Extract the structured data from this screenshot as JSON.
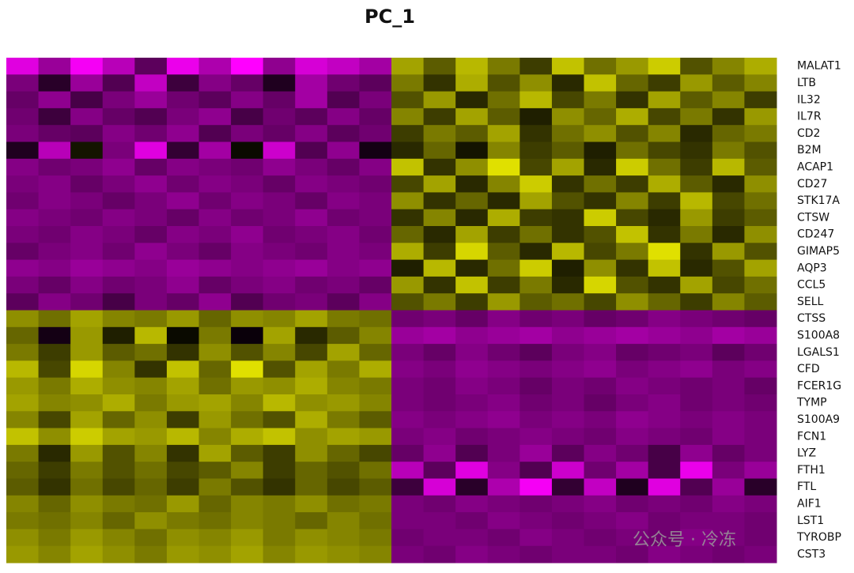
{
  "chart_data": {
    "type": "heatmap",
    "title": "PC_1",
    "rows": [
      "MALAT1",
      "LTB",
      "IL32",
      "IL7R",
      "CD2",
      "B2M",
      "ACAP1",
      "CD27",
      "STK17A",
      "CTSW",
      "CD247",
      "GIMAP5",
      "AQP3",
      "CCL5",
      "SELL",
      "CTSS",
      "S100A8",
      "LGALS1",
      "CFD",
      "FCER1G",
      "TYMP",
      "S100A9",
      "FCN1",
      "LYZ",
      "FTH1",
      "FTL",
      "AIF1",
      "LST1",
      "TYROBP",
      "CST3"
    ],
    "color_scale": {
      "colors": [
        "#ff00ff",
        "#000000",
        "#ffff00"
      ],
      "range": [
        -2.5,
        2.5
      ]
    },
    "values": [
      [
        -2.2,
        -1.5,
        -2.4,
        -1.8,
        -0.9,
        -2.3,
        -1.7,
        -2.5,
        -1.4,
        -2.1,
        -1.9,
        -1.6,
        1.6,
        0.9,
        1.8,
        1.2,
        0.6,
        1.9,
        1.1,
        1.5,
        2.0,
        0.8,
        1.3,
        1.7
      ],
      [
        -1.2,
        -0.4,
        -1.5,
        -0.8,
        -1.9,
        -0.6,
        -1.3,
        -1.0,
        -0.3,
        -1.6,
        -1.1,
        -0.9,
        1.2,
        0.5,
        1.7,
        0.8,
        1.4,
        0.4,
        1.9,
        1.0,
        0.6,
        1.5,
        0.9,
        1.3
      ],
      [
        -1.0,
        -1.4,
        -0.7,
        -1.2,
        -1.5,
        -1.1,
        -0.9,
        -1.3,
        -1.0,
        -1.6,
        -0.8,
        -1.2,
        0.8,
        1.5,
        0.4,
        1.1,
        1.8,
        0.7,
        1.2,
        0.5,
        1.6,
        0.9,
        1.3,
        0.6
      ],
      [
        -1.1,
        -0.6,
        -1.3,
        -1.0,
        -0.8,
        -1.2,
        -1.4,
        -0.7,
        -1.1,
        -0.9,
        -1.3,
        -1.0,
        1.3,
        0.6,
        1.6,
        0.9,
        0.3,
        1.4,
        1.0,
        1.7,
        0.7,
        1.2,
        0.5,
        1.5
      ],
      [
        -1.2,
        -1.0,
        -0.9,
        -1.3,
        -1.1,
        -1.4,
        -0.8,
        -1.2,
        -1.0,
        -1.3,
        -0.9,
        -1.1,
        0.6,
        1.2,
        0.9,
        1.6,
        0.5,
        1.1,
        1.4,
        0.8,
        1.3,
        0.4,
        1.0,
        1.2
      ],
      [
        -0.3,
        -1.8,
        0.2,
        -1.2,
        -2.2,
        -0.5,
        -1.6,
        0.1,
        -2.0,
        -0.8,
        -1.4,
        -0.2,
        0.4,
        1.0,
        0.2,
        1.3,
        0.6,
        0.9,
        0.3,
        1.1,
        0.7,
        0.5,
        1.2,
        0.8
      ],
      [
        -1.3,
        -1.1,
        -1.2,
        -1.4,
        -1.0,
        -1.3,
        -1.2,
        -1.1,
        -1.4,
        -1.2,
        -1.0,
        -1.3,
        1.9,
        0.5,
        1.4,
        2.2,
        0.7,
        1.6,
        0.4,
        2.0,
        1.1,
        0.6,
        1.8,
        0.9
      ],
      [
        -1.2,
        -1.3,
        -1.0,
        -1.2,
        -1.4,
        -1.1,
        -1.3,
        -1.2,
        -1.0,
        -1.3,
        -1.2,
        -1.1,
        0.7,
        1.6,
        0.4,
        1.3,
        2.0,
        0.5,
        1.1,
        0.6,
        1.7,
        0.9,
        0.4,
        1.4
      ],
      [
        -1.1,
        -1.3,
        -1.2,
        -1.0,
        -1.2,
        -1.4,
        -1.1,
        -1.3,
        -1.2,
        -1.0,
        -1.3,
        -1.2,
        1.4,
        0.5,
        1.0,
        0.4,
        1.6,
        0.8,
        0.5,
        1.3,
        0.6,
        1.8,
        0.7,
        1.1
      ],
      [
        -1.3,
        -1.2,
        -1.1,
        -1.3,
        -1.2,
        -1.0,
        -1.3,
        -1.1,
        -1.2,
        -1.4,
        -1.1,
        -1.2,
        0.5,
        1.3,
        0.4,
        1.7,
        0.6,
        0.5,
        2.0,
        0.7,
        0.4,
        1.5,
        0.6,
        0.9
      ],
      [
        -1.2,
        -1.1,
        -1.3,
        -1.2,
        -1.0,
        -1.3,
        -1.2,
        -1.4,
        -1.1,
        -1.2,
        -1.3,
        -1.1,
        1.0,
        0.4,
        1.6,
        0.6,
        1.1,
        0.5,
        0.8,
        1.9,
        0.5,
        1.2,
        0.4,
        1.4
      ],
      [
        -1.0,
        -1.2,
        -1.3,
        -1.1,
        -1.4,
        -1.2,
        -1.0,
        -1.3,
        -1.2,
        -1.1,
        -1.3,
        -1.2,
        1.7,
        0.6,
        2.1,
        0.9,
        0.4,
        1.8,
        0.7,
        1.2,
        2.2,
        0.5,
        1.5,
        0.8
      ],
      [
        -1.4,
        -1.3,
        -1.5,
        -1.4,
        -1.3,
        -1.5,
        -1.4,
        -1.3,
        -1.4,
        -1.5,
        -1.3,
        -1.4,
        0.3,
        1.8,
        0.4,
        1.1,
        2.0,
        0.3,
        1.4,
        0.5,
        1.9,
        0.4,
        0.8,
        1.6
      ],
      [
        -1.2,
        -1.0,
        -1.3,
        -1.1,
        -1.2,
        -1.4,
        -1.0,
        -1.2,
        -1.3,
        -1.1,
        -1.2,
        -1.0,
        1.5,
        0.5,
        1.9,
        0.6,
        1.2,
        0.4,
        2.1,
        0.8,
        0.5,
        1.6,
        0.7,
        1.1
      ],
      [
        -0.9,
        -1.3,
        -1.1,
        -0.7,
        -1.2,
        -1.0,
        -1.4,
        -0.8,
        -1.1,
        -1.2,
        -0.9,
        -1.3,
        0.8,
        1.2,
        0.6,
        1.5,
        0.9,
        1.1,
        0.7,
        1.4,
        1.0,
        0.6,
        1.3,
        0.9
      ],
      [
        1.4,
        1.1,
        1.6,
        1.3,
        1.2,
        1.5,
        1.0,
        1.4,
        1.3,
        1.6,
        1.2,
        1.1,
        -1.1,
        -1.2,
        -1.0,
        -1.3,
        -1.1,
        -1.2,
        -1.0,
        -1.1,
        -1.3,
        -1.2,
        -1.1,
        -1.0
      ],
      [
        1.0,
        -0.2,
        1.5,
        0.3,
        1.8,
        0.1,
        1.2,
        -0.1,
        1.6,
        0.4,
        0.9,
        1.3,
        -1.5,
        -1.6,
        -1.4,
        -1.5,
        -1.6,
        -1.4,
        -1.5,
        -1.6,
        -1.5,
        -1.4,
        -1.6,
        -1.5
      ],
      [
        1.2,
        0.6,
        1.5,
        0.9,
        1.1,
        0.5,
        1.4,
        0.8,
        1.3,
        0.7,
        1.6,
        1.0,
        -1.2,
        -1.0,
        -1.3,
        -1.1,
        -0.9,
        -1.2,
        -1.3,
        -1.0,
        -1.1,
        -1.2,
        -0.9,
        -1.1
      ],
      [
        1.8,
        0.7,
        2.1,
        1.3,
        0.5,
        1.9,
        1.0,
        2.2,
        0.8,
        1.6,
        1.2,
        1.7,
        -1.3,
        -1.2,
        -1.4,
        -1.3,
        -1.2,
        -1.3,
        -1.4,
        -1.2,
        -1.3,
        -1.4,
        -1.2,
        -1.3
      ],
      [
        1.5,
        1.2,
        1.7,
        1.4,
        1.3,
        1.6,
        1.1,
        1.5,
        1.4,
        1.7,
        1.3,
        1.2,
        -1.2,
        -1.1,
        -1.3,
        -1.2,
        -1.0,
        -1.2,
        -1.1,
        -1.3,
        -1.2,
        -1.1,
        -1.2,
        -1.0
      ],
      [
        1.6,
        1.3,
        1.4,
        1.7,
        1.2,
        1.5,
        1.6,
        1.3,
        1.8,
        1.4,
        1.5,
        1.3,
        -1.2,
        -1.1,
        -1.2,
        -1.3,
        -1.1,
        -1.2,
        -1.0,
        -1.2,
        -1.3,
        -1.1,
        -1.2,
        -1.1
      ],
      [
        1.3,
        0.7,
        1.6,
        1.0,
        1.4,
        0.6,
        1.5,
        1.1,
        0.8,
        1.7,
        1.2,
        0.9,
        -1.3,
        -1.2,
        -1.3,
        -1.4,
        -1.2,
        -1.3,
        -1.2,
        -1.4,
        -1.3,
        -1.2,
        -1.3,
        -1.2
      ],
      [
        1.9,
        1.4,
        2.0,
        1.6,
        1.5,
        1.8,
        1.3,
        1.7,
        1.9,
        1.4,
        1.6,
        1.5,
        -1.2,
        -1.3,
        -1.1,
        -1.2,
        -1.3,
        -1.2,
        -1.1,
        -1.3,
        -1.2,
        -1.1,
        -1.3,
        -1.2
      ],
      [
        1.2,
        0.4,
        1.5,
        0.8,
        1.3,
        0.5,
        1.6,
        0.9,
        0.6,
        1.4,
        1.0,
        0.7,
        -1.0,
        -1.4,
        -0.8,
        -1.2,
        -1.5,
        -0.9,
        -1.3,
        -1.1,
        -0.7,
        -1.4,
        -1.0,
        -1.2
      ],
      [
        1.0,
        0.6,
        1.2,
        0.8,
        1.1,
        0.7,
        0.9,
        1.3,
        0.6,
        1.0,
        0.8,
        1.1,
        -1.8,
        -0.9,
        -2.2,
        -1.3,
        -0.8,
        -2.0,
        -1.1,
        -1.6,
        -0.7,
        -2.3,
        -1.2,
        -1.5
      ],
      [
        0.9,
        0.5,
        1.1,
        0.7,
        1.0,
        0.6,
        1.2,
        0.8,
        0.5,
        1.0,
        0.7,
        0.9,
        -0.6,
        -2.1,
        -0.4,
        -1.7,
        -2.4,
        -0.5,
        -1.9,
        -0.3,
        -2.2,
        -0.8,
        -1.5,
        -0.4
      ],
      [
        1.3,
        1.0,
        1.4,
        1.2,
        1.1,
        1.5,
        1.0,
        1.3,
        1.2,
        1.4,
        1.1,
        1.2,
        -1.2,
        -1.1,
        -1.3,
        -1.2,
        -1.1,
        -1.2,
        -1.3,
        -1.1,
        -1.2,
        -1.1,
        -1.3,
        -1.2
      ],
      [
        1.2,
        1.1,
        1.3,
        1.0,
        1.4,
        1.2,
        1.1,
        1.3,
        1.2,
        1.0,
        1.3,
        1.1,
        -1.2,
        -1.2,
        -1.1,
        -1.3,
        -1.2,
        -1.1,
        -1.2,
        -1.3,
        -1.1,
        -1.2,
        -1.2,
        -1.1
      ],
      [
        1.4,
        1.2,
        1.5,
        1.3,
        1.1,
        1.4,
        1.3,
        1.5,
        1.2,
        1.4,
        1.3,
        1.2,
        -1.1,
        -1.2,
        -1.2,
        -1.1,
        -1.3,
        -1.2,
        -1.1,
        -1.2,
        -1.1,
        -1.3,
        -1.2,
        -1.1
      ],
      [
        1.5,
        1.3,
        1.6,
        1.4,
        1.2,
        1.5,
        1.4,
        1.6,
        1.3,
        1.5,
        1.4,
        1.3,
        -1.2,
        -1.1,
        -1.3,
        -1.2,
        -1.1,
        -1.2,
        -1.2,
        -1.1,
        -1.3,
        -1.2,
        -1.1,
        -1.2
      ]
    ]
  },
  "watermark": "公众号 · 冷冻"
}
